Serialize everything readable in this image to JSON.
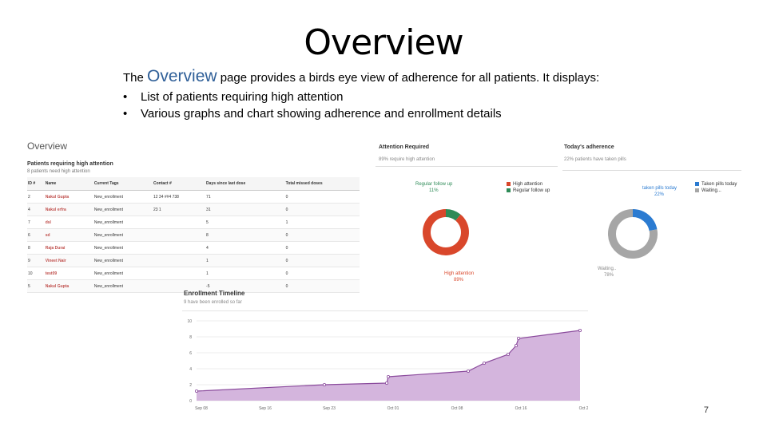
{
  "slide": {
    "title": "Overview",
    "intro_before": "The ",
    "intro_keyword": "Overview",
    "intro_after": " page provides a birds eye view of adherence for all patients. It displays:",
    "bullets": [
      "List of patients requiring high attention",
      "Various graphs and chart showing adherence and enrollment details"
    ],
    "page_number": "7"
  },
  "overview_panel": {
    "title": "Overview",
    "section_title": "Patients requiring high attention",
    "section_subtitle": "8 patients need high attention",
    "columns": [
      "ID #",
      "Name",
      "Current Tags",
      "Contact #",
      "Days since last dose",
      "Total missed doses"
    ],
    "rows": [
      [
        "2",
        "Nakul Gupta",
        "New_enrollment",
        "12 34 ##4 738",
        "71",
        "0"
      ],
      [
        "4",
        "Nakul erfra",
        "New_enrollment",
        "23 1",
        "31",
        "0"
      ],
      [
        "7",
        "dsl",
        "New_enrollment",
        "",
        "5",
        "1"
      ],
      [
        "6",
        "sd",
        "New_enrollment",
        "",
        "8",
        "0"
      ],
      [
        "8",
        "Raja Durai",
        "New_enrollment",
        "",
        "4",
        "0"
      ],
      [
        "9",
        "Vineet Nair",
        "New_enrollment",
        "",
        "1",
        "0"
      ],
      [
        "10",
        "test09",
        "New_enrollment",
        "",
        "1",
        "0"
      ],
      [
        "5",
        "Nakul Gupta",
        "New_enrollment",
        "",
        "-5",
        "0"
      ]
    ]
  },
  "attention_panel": {
    "title": "Attention Required",
    "subtitle": "89% require high attention",
    "slice_label_1": "Regular follow up",
    "slice_value_1": "11%",
    "slice_label_2": "High attention",
    "slice_value_2": "89%",
    "legend": [
      "High attention",
      "Regular follow up"
    ]
  },
  "adherence_panel": {
    "title": "Today's adherence",
    "subtitle": "22% patients have taken pills",
    "slice_label_1": "taken pills today",
    "slice_value_1": "22%",
    "slice_label_2": "Waiting..",
    "slice_value_2": "78%",
    "legend": [
      "Taken pills today",
      "Waiting..."
    ]
  },
  "timeline_panel": {
    "title": "Enrollment Timeline",
    "subtitle": "9 have been enrolled so far"
  },
  "colors": {
    "link_red": "#c0504d",
    "high_attention": "#d9472b",
    "regular_follow_up": "#2e8b57",
    "taken": "#2b7bd1",
    "waiting": "#a6a6a6",
    "area_fill": "#d4b5dd",
    "area_line": "#8a4a9c"
  },
  "chart_data": [
    {
      "type": "pie",
      "title": "Attention Required",
      "categories": [
        "High attention",
        "Regular follow up"
      ],
      "values": [
        89,
        11
      ]
    },
    {
      "type": "pie",
      "title": "Today's adherence",
      "categories": [
        "Taken pills today",
        "Waiting..."
      ],
      "values": [
        22,
        78
      ]
    },
    {
      "type": "area",
      "title": "Enrollment Timeline",
      "xlabel": "",
      "ylabel": "",
      "ylim": [
        0,
        10
      ],
      "yticks": [
        "0",
        "2",
        "4",
        "6",
        "8",
        "10"
      ],
      "xticks": [
        "Sep 08",
        "Sep 16",
        "Sep 23",
        "Oct 01",
        "Oct 08",
        "Oct 16",
        "Oct 24"
      ],
      "x": [
        0,
        16,
        23.8,
        24,
        34,
        36,
        39,
        40,
        40.3,
        48
      ],
      "values": [
        1.2,
        2.0,
        2.2,
        3.0,
        3.7,
        4.7,
        5.8,
        6.9,
        7.8,
        8.8
      ]
    }
  ]
}
